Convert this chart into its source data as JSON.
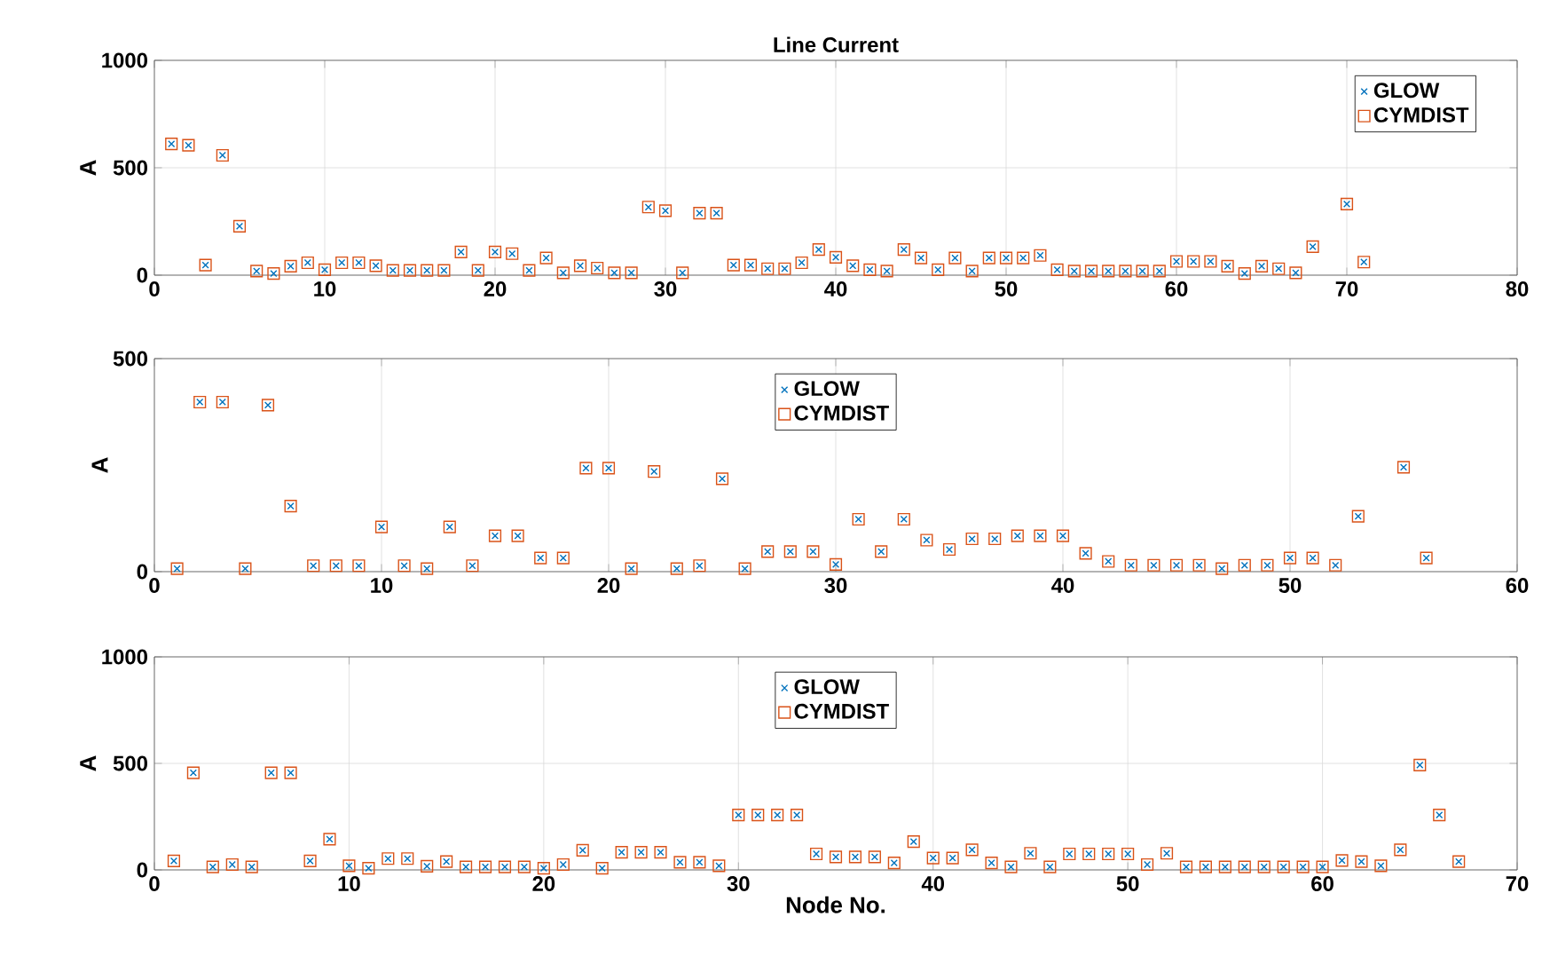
{
  "chart_data": [
    {
      "type": "scatter",
      "title": "Line Current",
      "ylabel": "A",
      "x": [
        1,
        2,
        3,
        4,
        5,
        6,
        7,
        8,
        9,
        10,
        11,
        12,
        13,
        14,
        15,
        16,
        17,
        18,
        19,
        20,
        21,
        22,
        23,
        24,
        25,
        26,
        27,
        28,
        29,
        30,
        31,
        32,
        33,
        34,
        35,
        36,
        37,
        38,
        39,
        40,
        41,
        42,
        43,
        44,
        45,
        46,
        47,
        48,
        49,
        50,
        51,
        52,
        53,
        54,
        55,
        56,
        57,
        58,
        59,
        60,
        61,
        62,
        63,
        64,
        65,
        66,
        67,
        68,
        70,
        71
      ],
      "series": [
        {
          "name": "GLOW",
          "color": "#0072bd",
          "marker": "cross",
          "values": [
            611,
            605,
            47,
            558,
            228,
            19,
            8,
            42,
            58,
            25,
            58,
            58,
            44,
            22,
            22,
            22,
            22,
            108,
            22,
            108,
            100,
            22,
            80,
            11,
            44,
            33,
            11,
            11,
            317,
            300,
            11,
            289,
            289,
            47,
            47,
            30,
            30,
            58,
            119,
            83,
            44,
            25,
            19,
            119,
            80,
            25,
            80,
            19,
            80,
            80,
            80,
            92,
            25,
            19,
            19,
            19,
            19,
            19,
            19,
            64,
            64,
            64,
            42,
            8,
            42,
            30,
            11,
            133,
            331,
            61
          ]
        },
        {
          "name": "CYMDIST",
          "color": "#d95319",
          "marker": "square",
          "values": [
            611,
            605,
            47,
            558,
            228,
            19,
            8,
            42,
            58,
            25,
            58,
            58,
            44,
            22,
            22,
            22,
            22,
            108,
            22,
            108,
            100,
            22,
            80,
            11,
            44,
            33,
            11,
            11,
            317,
            300,
            11,
            289,
            289,
            47,
            47,
            30,
            30,
            58,
            119,
            83,
            44,
            25,
            19,
            119,
            80,
            25,
            80,
            19,
            80,
            80,
            80,
            92,
            25,
            19,
            19,
            19,
            19,
            19,
            19,
            64,
            64,
            64,
            42,
            8,
            42,
            30,
            11,
            133,
            331,
            61
          ]
        }
      ],
      "xlim": [
        0,
        80
      ],
      "xticks": [
        0,
        10,
        20,
        30,
        40,
        50,
        60,
        70,
        80
      ],
      "ylim": [
        0,
        1000
      ],
      "yticks": [
        0,
        500,
        1000
      ],
      "grid": true,
      "legend": "top right"
    },
    {
      "type": "scatter",
      "ylabel": "A",
      "x": [
        1,
        2,
        3,
        4,
        5,
        6,
        7,
        8,
        9,
        10,
        11,
        12,
        13,
        14,
        15,
        16,
        17,
        18,
        19,
        20,
        21,
        22,
        23,
        24,
        25,
        26,
        27,
        28,
        29,
        30,
        31,
        32,
        33,
        34,
        35,
        36,
        37,
        38,
        39,
        40,
        41,
        42,
        43,
        44,
        45,
        46,
        47,
        48,
        49,
        50,
        51,
        52,
        53,
        55,
        56
      ],
      "series": [
        {
          "name": "GLOW",
          "color": "#0072bd",
          "marker": "cross",
          "values": [
            7,
            398,
            398,
            7,
            391,
            154,
            14,
            14,
            14,
            105,
            14,
            7,
            105,
            14,
            84,
            84,
            32,
            32,
            243,
            243,
            7,
            235,
            7,
            14,
            218,
            7,
            47,
            47,
            47,
            17,
            123,
            47,
            123,
            74,
            52,
            77,
            77,
            84,
            84,
            84,
            43,
            24,
            15,
            15,
            15,
            15,
            7,
            15,
            15,
            32,
            32,
            15,
            130,
            245,
            32
          ]
        },
        {
          "name": "CYMDIST",
          "color": "#d95319",
          "marker": "square",
          "values": [
            7,
            398,
            398,
            7,
            391,
            154,
            14,
            14,
            14,
            105,
            14,
            7,
            105,
            14,
            84,
            84,
            32,
            32,
            243,
            243,
            7,
            235,
            7,
            14,
            218,
            7,
            47,
            47,
            47,
            17,
            123,
            47,
            123,
            74,
            52,
            77,
            77,
            84,
            84,
            84,
            43,
            24,
            15,
            15,
            15,
            15,
            7,
            15,
            15,
            32,
            32,
            15,
            130,
            245,
            32
          ]
        }
      ],
      "xlim": [
        0,
        60
      ],
      "xticks": [
        0,
        10,
        20,
        30,
        40,
        50,
        60
      ],
      "ylim": [
        0,
        500
      ],
      "yticks": [
        0,
        500
      ],
      "grid": true,
      "legend": "top"
    },
    {
      "type": "scatter",
      "ylabel": "A",
      "xlabel": "Node No.",
      "x": [
        1,
        2,
        3,
        4,
        5,
        6,
        7,
        8,
        9,
        10,
        11,
        12,
        13,
        14,
        15,
        16,
        17,
        18,
        19,
        20,
        21,
        22,
        23,
        24,
        25,
        26,
        27,
        28,
        29,
        30,
        31,
        32,
        33,
        34,
        35,
        36,
        37,
        38,
        39,
        40,
        41,
        42,
        43,
        44,
        45,
        46,
        47,
        48,
        49,
        50,
        51,
        52,
        53,
        54,
        55,
        56,
        57,
        58,
        59,
        60,
        61,
        62,
        63,
        64,
        65,
        66,
        67
      ],
      "series": [
        {
          "name": "GLOW",
          "color": "#0072bd",
          "marker": "cross",
          "values": [
            42,
            456,
            14,
            25,
            14,
            456,
            456,
            42,
            144,
            19,
            8,
            53,
            53,
            17,
            39,
            14,
            14,
            14,
            14,
            8,
            25,
            92,
            8,
            83,
            83,
            83,
            36,
            36,
            19,
            258,
            258,
            258,
            258,
            75,
            61,
            61,
            61,
            33,
            133,
            56,
            56,
            94,
            33,
            14,
            78,
            14,
            75,
            75,
            75,
            75,
            25,
            78,
            14,
            14,
            14,
            14,
            14,
            14,
            14,
            14,
            44,
            39,
            19,
            94,
            492,
            258,
            39
          ]
        },
        {
          "name": "CYMDIST",
          "color": "#d95319",
          "marker": "square",
          "values": [
            42,
            456,
            14,
            25,
            14,
            456,
            456,
            42,
            144,
            19,
            8,
            53,
            53,
            17,
            39,
            14,
            14,
            14,
            14,
            8,
            25,
            92,
            8,
            83,
            83,
            83,
            36,
            36,
            19,
            258,
            258,
            258,
            258,
            75,
            61,
            61,
            61,
            33,
            133,
            56,
            56,
            94,
            33,
            14,
            78,
            14,
            75,
            75,
            75,
            75,
            25,
            78,
            14,
            14,
            14,
            14,
            14,
            14,
            14,
            14,
            44,
            39,
            19,
            94,
            492,
            258,
            39
          ]
        }
      ],
      "xlim": [
        0,
        70
      ],
      "xticks": [
        0,
        10,
        20,
        30,
        40,
        50,
        60,
        70
      ],
      "ylim": [
        0,
        1000
      ],
      "yticks": [
        0,
        500,
        1000
      ],
      "grid": true,
      "legend": "top"
    }
  ]
}
